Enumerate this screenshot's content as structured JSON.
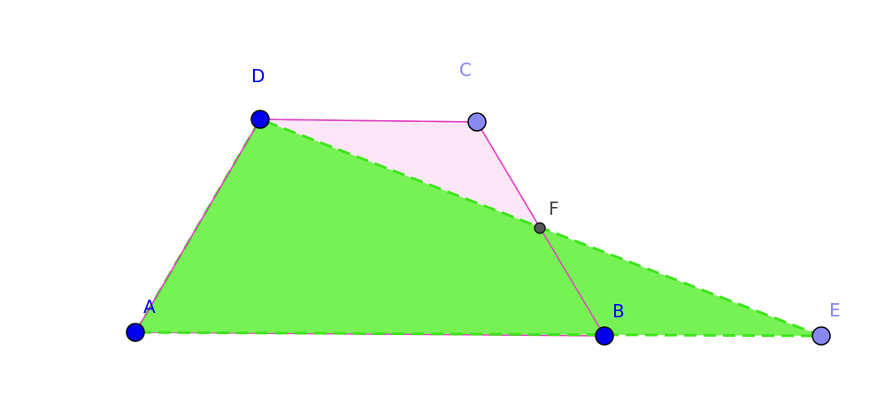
{
  "points": [
    "A",
    "B",
    "C",
    "D",
    "E",
    "F"
  ]
}
